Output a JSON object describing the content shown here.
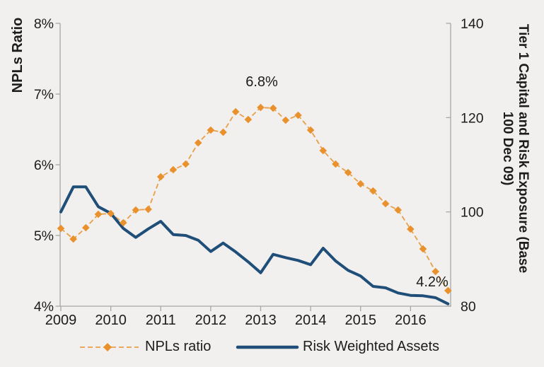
{
  "chart_data": {
    "type": "line",
    "title": "",
    "x_axis": {
      "tick_labels": [
        "2009",
        "2010",
        "2011",
        "2012",
        "2013",
        "2014",
        "2015",
        "2016"
      ],
      "points_per_year": 4
    },
    "left_axis": {
      "label": "NPLs Ratio",
      "ticks": [
        "8%",
        "7%",
        "6%",
        "5%",
        "4%"
      ],
      "tick_values": [
        8,
        7,
        6,
        5,
        4
      ],
      "range": [
        4,
        8
      ],
      "unit": "%"
    },
    "right_axis": {
      "label_line1": "Tier 1 Capital and Risk Exposure (Base",
      "label_line2": "100 Dec 09)",
      "ticks": [
        "140",
        "120",
        "100",
        "80"
      ],
      "tick_values": [
        140,
        120,
        100,
        80
      ],
      "range": [
        80,
        140
      ]
    },
    "x_quarters": [
      "2009 Q1",
      "2009 Q2",
      "2009 Q3",
      "2009 Q4",
      "2010 Q1",
      "2010 Q2",
      "2010 Q3",
      "2010 Q4",
      "2011 Q1",
      "2011 Q2",
      "2011 Q3",
      "2011 Q4",
      "2012 Q1",
      "2012 Q2",
      "2012 Q3",
      "2012 Q4",
      "2013 Q1",
      "2013 Q2",
      "2013 Q3",
      "2013 Q4",
      "2014 Q1",
      "2014 Q2",
      "2014 Q3",
      "2014 Q4",
      "2015 Q1",
      "2015 Q2",
      "2015 Q3",
      "2015 Q4",
      "2016 Q1",
      "2016 Q2",
      "2016 Q3",
      "2016 Q4"
    ],
    "series": [
      {
        "name": "NPLs ratio",
        "axis": "left",
        "style": "dashed-diamond",
        "color": "#E8912D",
        "values": [
          5.1,
          4.95,
          5.11,
          5.3,
          5.31,
          5.18,
          5.36,
          5.37,
          5.83,
          5.93,
          6.01,
          6.31,
          6.49,
          6.46,
          6.75,
          6.64,
          6.81,
          6.8,
          6.63,
          6.7,
          6.49,
          6.2,
          6.01,
          5.89,
          5.73,
          5.63,
          5.45,
          5.36,
          5.09,
          4.81,
          4.49,
          4.22
        ]
      },
      {
        "name": "Risk Weighted Assets",
        "axis": "right",
        "style": "solid",
        "color": "#1F4E79",
        "values": [
          100.0,
          105.3,
          105.3,
          101.1,
          99.7,
          96.5,
          94.6,
          96.4,
          98.0,
          95.2,
          95.0,
          94.0,
          91.6,
          93.4,
          91.5,
          89.4,
          87.1,
          91.0,
          90.3,
          89.7,
          88.8,
          92.3,
          89.6,
          87.6,
          86.4,
          84.2,
          83.9,
          82.8,
          82.3,
          82.2,
          81.8,
          80.5
        ]
      }
    ],
    "annotations": [
      {
        "text": "6.8%",
        "series": 0,
        "point_index": 16
      },
      {
        "text": "4.2%",
        "series": 0,
        "point_index": 31
      }
    ],
    "legend": {
      "position": "bottom",
      "items": [
        "NPLs ratio",
        "Risk Weighted Assets"
      ]
    },
    "grid": "off",
    "colors": {
      "background": "#F1F0EE",
      "axis": "#A6A6A4",
      "text": "#1c1c1c",
      "npl_orange": "#E8912D",
      "rwa_blue": "#1F4E79"
    }
  }
}
